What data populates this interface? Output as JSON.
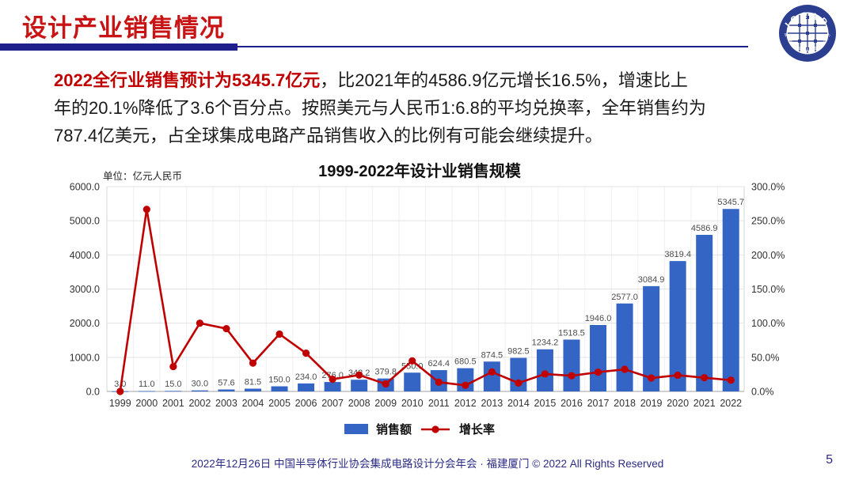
{
  "header": {
    "title": "设计产业销售情况"
  },
  "logo": {
    "text": "ICCAD",
    "ring_text": "中国半导体行业协会集成电路设计分会"
  },
  "paragraph": {
    "highlight": "2022全行业销售预计为5345.7亿元",
    "rest_lines": [
      "，比2021年的4586.9亿元增长16.5%，增速比上",
      "年的20.1%降低了3.6个百分点。按照美元与人民币1:6.8的平均兑换率，全年销售约为",
      "787.4亿美元，占全球集成电路产品销售收入的比例有可能会继续提升。"
    ]
  },
  "chart": {
    "unit_label": "单位：亿元人民币"
  },
  "chart_data": {
    "type": "bar",
    "title": "1999-2022年设计业销售规模",
    "categories": [
      "1999",
      "2000",
      "2001",
      "2002",
      "2003",
      "2004",
      "2005",
      "2006",
      "2007",
      "2008",
      "2009",
      "2010",
      "2011",
      "2012",
      "2013",
      "2014",
      "2015",
      "2016",
      "2017",
      "2018",
      "2019",
      "2020",
      "2021",
      "2022"
    ],
    "series": [
      {
        "name": "销售额",
        "type": "bar",
        "axis": "left",
        "values": [
          3.0,
          11.0,
          15.0,
          30.0,
          57.6,
          81.5,
          150.0,
          234.0,
          276.0,
          342.2,
          379.8,
          550.0,
          624.4,
          680.5,
          874.5,
          982.5,
          1234.2,
          1518.5,
          1946.0,
          2577.0,
          3084.9,
          3819.4,
          4586.9,
          5345.7
        ]
      },
      {
        "name": "增长率",
        "type": "line",
        "axis": "right",
        "values": [
          0.0,
          266.7,
          36.4,
          100.0,
          92.0,
          41.5,
          84.0,
          56.0,
          17.9,
          24.0,
          11.0,
          44.8,
          13.5,
          9.0,
          28.5,
          12.3,
          25.6,
          23.0,
          28.2,
          32.4,
          19.7,
          23.8,
          20.1,
          16.5
        ]
      }
    ],
    "ylabel": "亿元人民币",
    "ylim": [
      0,
      6000
    ],
    "y2lim": [
      0,
      300
    ],
    "yticks": [
      "6000.0",
      "5000.0",
      "4000.0",
      "3000.0",
      "2000.0",
      "1000.0",
      "0.0"
    ],
    "y2ticks": [
      "300.0%",
      "250.0%",
      "200.0%",
      "150.0%",
      "100.0%",
      "50.0%",
      "0.0%"
    ],
    "grid": true,
    "legend_position": "bottom",
    "colors": {
      "bar": "#3565C4",
      "line": "#C00000"
    }
  },
  "footer": {
    "text": "2022年12月26日 中国半导体行业协会集成电路设计分会年会 · 福建厦门 © 2022 All Rights Reserved",
    "page": "5"
  },
  "colors": {
    "accent_red": "#C81414",
    "navy": "#1F1F8C",
    "footer_navy": "#2B2B85"
  }
}
